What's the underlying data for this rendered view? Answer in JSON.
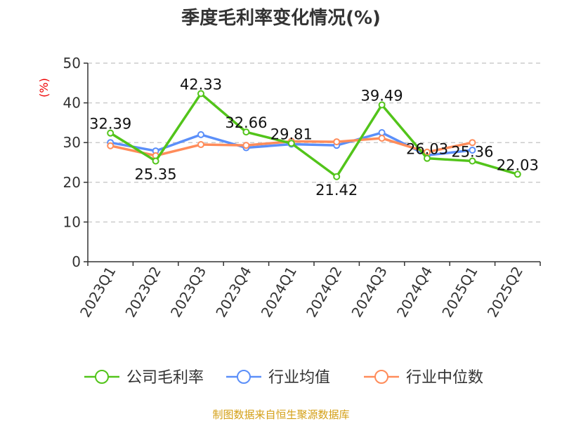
{
  "chart_data": {
    "type": "line",
    "title": "季度毛利率变化情况(%)",
    "ylabel": "(%)",
    "ylim": [
      0,
      50
    ],
    "yticks": [
      0,
      10,
      20,
      30,
      40,
      50
    ],
    "grid": true,
    "legend_position": "bottom",
    "categories": [
      "2023Q1",
      "2023Q2",
      "2023Q3",
      "2023Q4",
      "2024Q1",
      "2024Q2",
      "2024Q3",
      "2024Q4",
      "2025Q1",
      "2025Q2"
    ],
    "series": [
      {
        "name": "公司毛利率",
        "color": "#52c41a",
        "show_labels": true,
        "values": [
          32.39,
          25.35,
          42.33,
          32.66,
          29.81,
          21.42,
          39.49,
          26.03,
          25.36,
          22.03
        ]
      },
      {
        "name": "行业均值",
        "color": "#5b8ff9",
        "values": [
          30.0,
          27.9,
          32.0,
          28.7,
          29.6,
          29.3,
          32.5,
          26.8,
          28.1,
          null
        ]
      },
      {
        "name": "行业中位数",
        "color": "#ff8c5a",
        "values": [
          29.2,
          26.7,
          29.5,
          29.3,
          30.3,
          30.2,
          31.1,
          27.6,
          30.0,
          null
        ]
      }
    ]
  },
  "source": "制图数据来自恒生聚源数据库"
}
